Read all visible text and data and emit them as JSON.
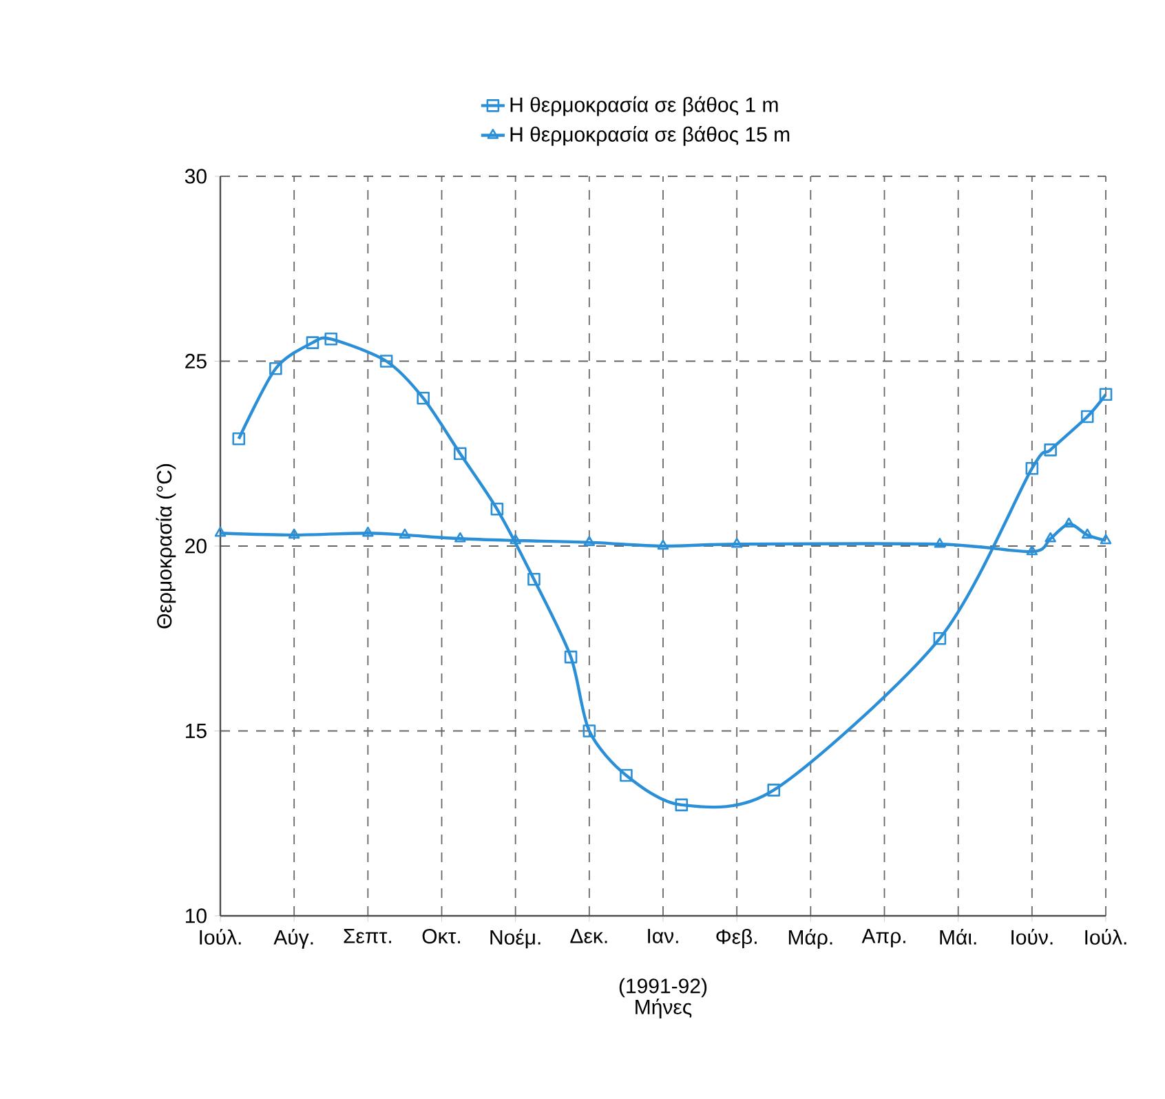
{
  "chart_data": {
    "type": "line",
    "xlabel": "Μήνες",
    "ylabel": "Θερμοκρασία (°C)",
    "annotations": [
      "(1991-92)"
    ],
    "categories": [
      "Ιούλ.",
      null,
      null,
      null,
      "Αύγ.",
      null,
      null,
      null,
      "Σεπτ.",
      null,
      null,
      null,
      "Οκτ.",
      null,
      null,
      null,
      "Νοέμ.",
      null,
      null,
      null,
      "Δεκ.",
      null,
      null,
      null,
      "Ιαν.",
      null,
      null,
      null,
      "Φεβ.",
      null,
      null,
      null,
      "Μάρ.",
      null,
      null,
      null,
      "Απρ.",
      null,
      null,
      null,
      "Μάι.",
      null,
      null,
      null,
      "Ιούν.",
      null,
      null,
      null,
      "Ιούλ."
    ],
    "ylim": [
      10,
      30
    ],
    "yticks": [
      10,
      15,
      20,
      25,
      30
    ],
    "grid": true,
    "legend": "top",
    "line_style": "solid",
    "series": [
      {
        "name": "Η θερμοκρασία σε βάθος 1 m",
        "color": "#2a8fd6",
        "marker": "square",
        "values": [
          null,
          22.9,
          null,
          24.8,
          null,
          25.5,
          25.6,
          null,
          null,
          25.0,
          null,
          24.0,
          null,
          22.5,
          null,
          21.0,
          null,
          19.1,
          null,
          17.0,
          15.0,
          null,
          13.8,
          null,
          null,
          13.0,
          null,
          null,
          null,
          null,
          13.4,
          null,
          null,
          null,
          null,
          null,
          null,
          null,
          null,
          17.5,
          null,
          null,
          null,
          null,
          22.1,
          22.6,
          null,
          23.5,
          24.1
        ]
      },
      {
        "name": "Η θερμοκρασία σε βάθος 15 m",
        "color": "#2a8fd6",
        "marker": "triangle",
        "values": [
          20.35,
          null,
          null,
          null,
          20.3,
          null,
          null,
          null,
          20.35,
          null,
          20.3,
          null,
          null,
          20.2,
          null,
          null,
          20.15,
          null,
          null,
          null,
          20.1,
          null,
          null,
          null,
          20.0,
          null,
          null,
          null,
          20.05,
          null,
          null,
          null,
          null,
          null,
          null,
          null,
          null,
          null,
          null,
          20.05,
          null,
          null,
          null,
          null,
          19.85,
          20.2,
          20.6,
          20.3,
          20.15
        ]
      }
    ]
  }
}
